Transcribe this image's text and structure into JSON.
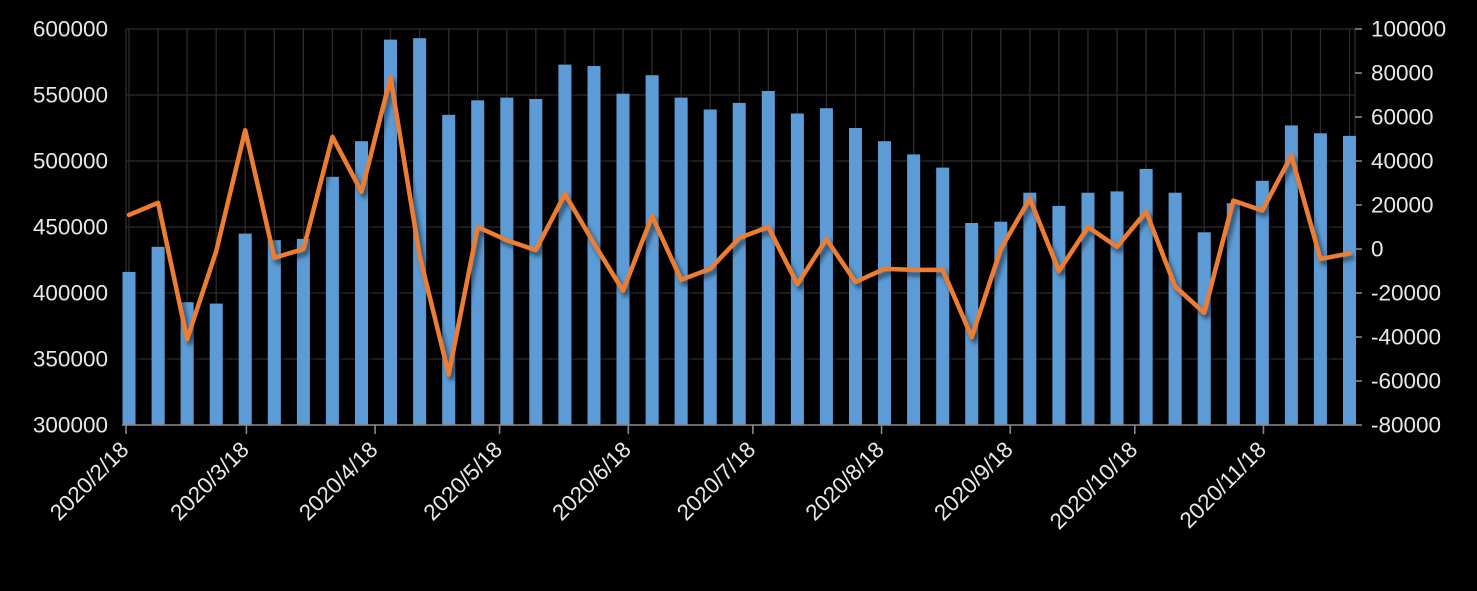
{
  "chart_data": {
    "type": "bar",
    "subtype": "combo-bar-line-dual-axis",
    "title": "",
    "background": "#000000",
    "grid": true,
    "legend": false,
    "n_points": 43,
    "x_axis": {
      "tick_labels": [
        "2020/2/18",
        "2020/3/18",
        "2020/4/18",
        "2020/5/18",
        "2020/6/18",
        "2020/7/18",
        "2020/8/18",
        "2020/9/18",
        "2020/10/18",
        "2020/11/18"
      ],
      "tick_day_offsets": [
        0,
        29,
        60,
        90,
        121,
        151,
        182,
        213,
        243,
        274
      ],
      "points_interval_days": 7
    },
    "left_axis": {
      "min": 300000,
      "max": 600000,
      "step": 50000,
      "tick_labels": [
        "600000",
        "550000",
        "500000",
        "450000",
        "400000",
        "350000",
        "300000"
      ]
    },
    "right_axis": {
      "min": -80000,
      "max": 100000,
      "step": 20000,
      "tick_labels": [
        "100000",
        "80000",
        "60000",
        "40000",
        "20000",
        "0",
        "-20000",
        "-40000",
        "-60000",
        "-80000"
      ]
    },
    "series": [
      {
        "name": "bars",
        "type": "bar",
        "axis": "left",
        "color": "#5B9BD5",
        "values": [
          416000,
          435000,
          393000,
          392000,
          445000,
          440000,
          441000,
          488000,
          515000,
          592000,
          593000,
          535000,
          546000,
          548000,
          547000,
          573000,
          572000,
          551000,
          565000,
          548000,
          539000,
          544000,
          553000,
          536000,
          540000,
          525000,
          515000,
          505000,
          495000,
          453000,
          454000,
          476000,
          466000,
          476000,
          477000,
          494000,
          476000,
          446000,
          468000,
          485000,
          527000,
          521000,
          519000
        ]
      },
      {
        "name": "line",
        "type": "line",
        "axis": "right",
        "color": "#ED7D31",
        "values": [
          15500,
          21000,
          -41000,
          -1000,
          54000,
          -4000,
          0,
          51000,
          26000,
          78000,
          -3000,
          -57000,
          10000,
          4000,
          -500,
          25000,
          2500,
          -19000,
          15000,
          -14000,
          -9000,
          5000,
          10000,
          -16000,
          4500,
          -15000,
          -9000,
          -9500,
          -9500,
          -40000,
          0,
          23000,
          -10000,
          10000,
          1000,
          17000,
          -17000,
          -29000,
          22000,
          17500,
          42500,
          -4500,
          -2000
        ]
      }
    ]
  },
  "colors": {
    "background": "#000000",
    "bar": "#5B9BD5",
    "line": "#ED7D31",
    "gridline": "#2d2d2d",
    "axis_line": "#8a8a8a",
    "tick_label": "#e8e8e8"
  }
}
